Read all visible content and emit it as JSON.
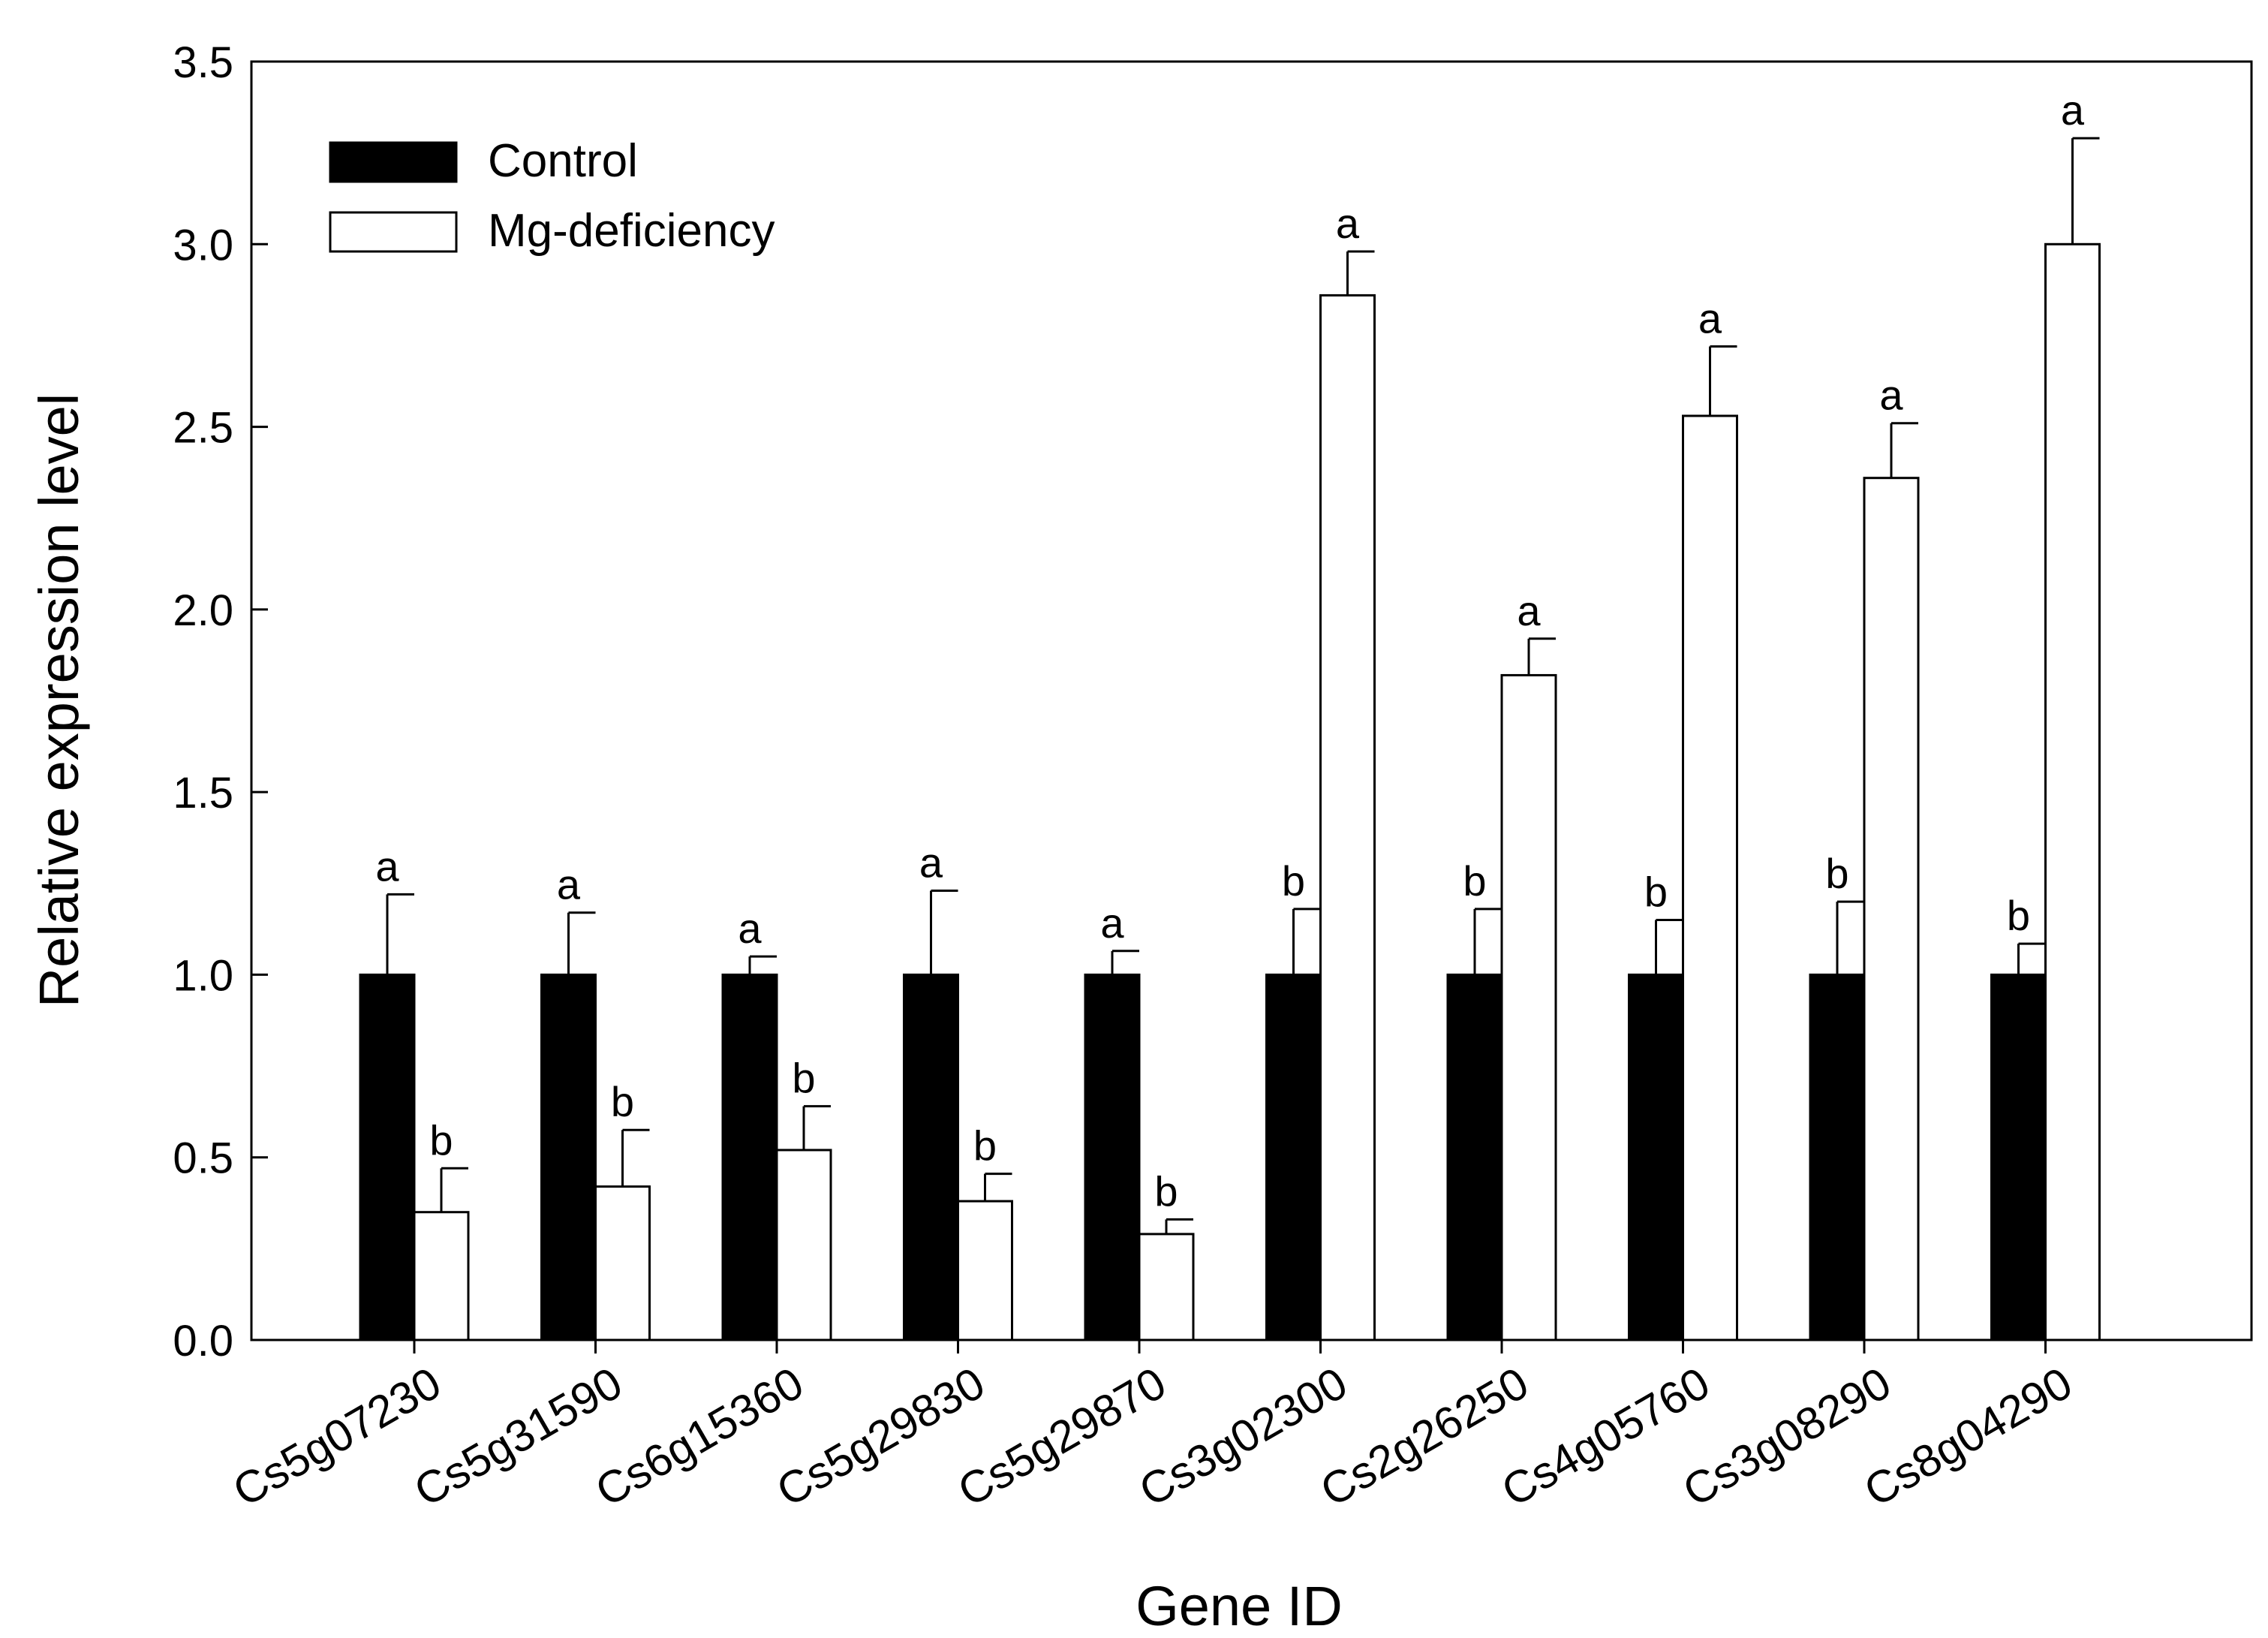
{
  "chart_data": {
    "type": "bar",
    "title": "",
    "xlabel": "Gene ID",
    "ylabel": "Relative expression level",
    "ylim": [
      0,
      3.5
    ],
    "yticks": [
      0.0,
      0.5,
      1.0,
      1.5,
      2.0,
      2.5,
      3.0,
      3.5
    ],
    "ytick_labels": [
      "0.0",
      "0.5",
      "1.0",
      "1.5",
      "2.0",
      "2.5",
      "3.0",
      "3.5"
    ],
    "grid": false,
    "legend_position": "top-left",
    "categories": [
      "Cs5g07230",
      "Cs5g31590",
      "Cs6g15360",
      "Cs5g29830",
      "Cs5g29870",
      "Cs3g02300",
      "Cs2g26250",
      "Cs4g05760",
      "Cs3g08290",
      "Cs8g04290"
    ],
    "series": [
      {
        "name": "Control",
        "fill": "#000000",
        "values": [
          1.0,
          1.0,
          1.0,
          1.0,
          1.0,
          1.0,
          1.0,
          1.0,
          1.0,
          1.0
        ],
        "errors": [
          0.22,
          0.17,
          0.05,
          0.23,
          0.065,
          0.18,
          0.18,
          0.15,
          0.2,
          0.085
        ],
        "letters": [
          "a",
          "a",
          "a",
          "a",
          "a",
          "b",
          "b",
          "b",
          "b",
          "b"
        ]
      },
      {
        "name": "Mg-deficiency",
        "fill": "#ffffff",
        "values": [
          0.35,
          0.42,
          0.52,
          0.38,
          0.29,
          2.86,
          1.82,
          2.53,
          2.36,
          3.0
        ],
        "errors": [
          0.12,
          0.155,
          0.12,
          0.075,
          0.04,
          0.12,
          0.1,
          0.19,
          0.15,
          0.29
        ],
        "letters": [
          "b",
          "b",
          "b",
          "b",
          "b",
          "a",
          "a",
          "a",
          "a",
          "a"
        ]
      }
    ]
  }
}
